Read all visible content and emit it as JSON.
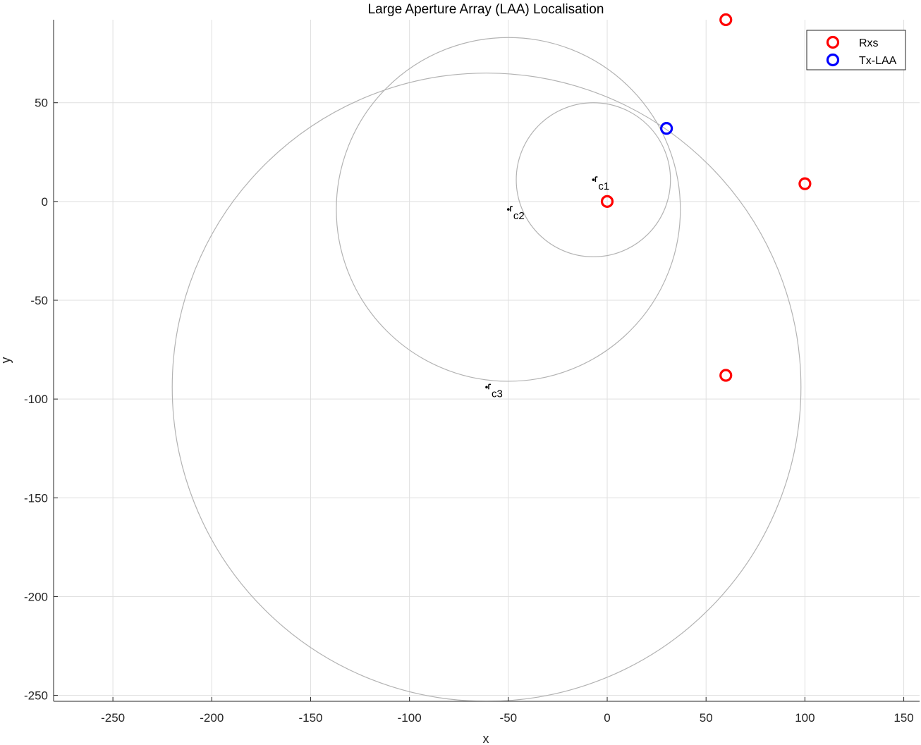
{
  "chart_data": {
    "type": "scatter",
    "title": "Large Aperture Array (LAA) Localisation",
    "xlabel": "x",
    "ylabel": "y",
    "xlim": [
      -280,
      158
    ],
    "ylim": [
      -253,
      92
    ],
    "xticks": [
      -250,
      -200,
      -150,
      -100,
      -50,
      0,
      50,
      100,
      150
    ],
    "yticks": [
      50,
      0,
      -50,
      -100,
      -150,
      -200,
      -250
    ],
    "grid": true,
    "legend_position": "top-right",
    "series": [
      {
        "name": "Rxs",
        "marker": "circle",
        "color": "#ff0000",
        "points": [
          {
            "x": 0,
            "y": 0
          },
          {
            "x": 60,
            "y": 92
          },
          {
            "x": 100,
            "y": 9
          },
          {
            "x": 60,
            "y": -88
          }
        ]
      },
      {
        "name": "Tx-LAA",
        "marker": "circle",
        "color": "#0000ff",
        "points": [
          {
            "x": 30,
            "y": 37
          }
        ]
      }
    ],
    "circles": [
      {
        "center": {
          "x": -7,
          "y": 11
        },
        "radius": 39,
        "label": "c1"
      },
      {
        "center": {
          "x": -50,
          "y": -4
        },
        "radius": 87,
        "label": "c2"
      },
      {
        "center": {
          "x": -61,
          "y": -94
        },
        "radius": 159,
        "label": "c3"
      }
    ],
    "circle_color": "#b3b3b3"
  }
}
